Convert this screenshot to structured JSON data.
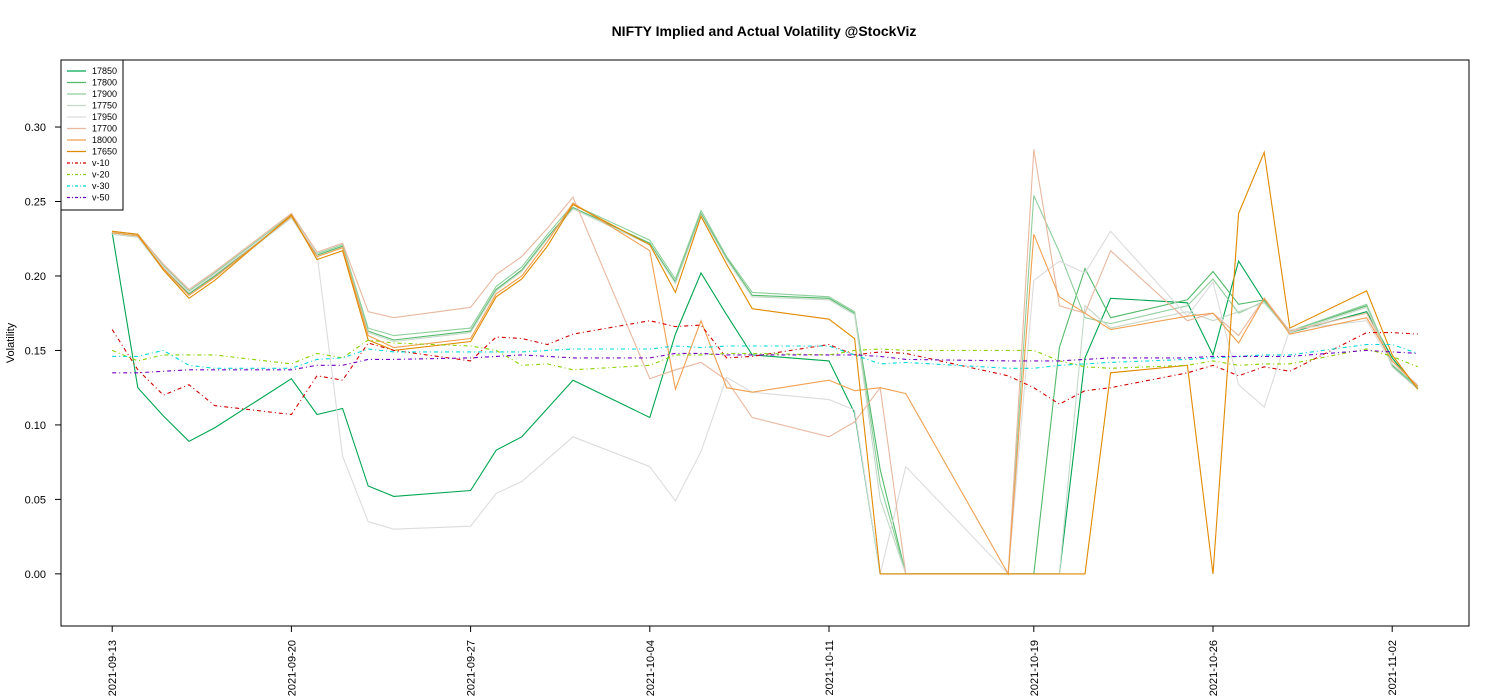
{
  "chart_data": {
    "type": "line",
    "title": "NIFTY Implied and Actual Volatility @StockViz",
    "xlabel": "",
    "ylabel": "Volatility",
    "ylim": [
      -0.035,
      0.345
    ],
    "xlim": [
      "2021-09-11",
      "2021-11-05"
    ],
    "yticks": [
      "0.00",
      "0.05",
      "0.10",
      "0.15",
      "0.20",
      "0.25",
      "0.30"
    ],
    "xticks": [
      "2021-09-13",
      "2021-09-20",
      "2021-09-27",
      "2021-10-04",
      "2021-10-11",
      "2021-10-19",
      "2021-10-26",
      "2021-11-02"
    ],
    "grid": false,
    "legend_position": "top-left",
    "dates": [
      "2021-09-13",
      "2021-09-14",
      "2021-09-15",
      "2021-09-16",
      "2021-09-17",
      "2021-09-20",
      "2021-09-21",
      "2021-09-22",
      "2021-09-23",
      "2021-09-24",
      "2021-09-27",
      "2021-09-28",
      "2021-09-29",
      "2021-09-30",
      "2021-10-01",
      "2021-10-04",
      "2021-10-05",
      "2021-10-06",
      "2021-10-07",
      "2021-10-08",
      "2021-10-11",
      "2021-10-12",
      "2021-10-13",
      "2021-10-14",
      "2021-10-18",
      "2021-10-19",
      "2021-10-20",
      "2021-10-21",
      "2021-10-22",
      "2021-10-25",
      "2021-10-26",
      "2021-10-27",
      "2021-10-28",
      "2021-10-29",
      "2021-11-01",
      "2021-11-02",
      "2021-11-03"
    ],
    "series": [
      {
        "name": "17850",
        "color": "#00a650",
        "dash": "",
        "values": [
          0.229,
          0.125,
          0.106,
          0.089,
          0.098,
          0.131,
          0.107,
          0.111,
          0.059,
          0.052,
          0.056,
          0.083,
          0.092,
          0.111,
          0.13,
          0.105,
          0.161,
          0.202,
          0.174,
          0.147,
          0.143,
          0.108,
          0.0,
          0.0,
          0.0,
          0.0,
          0.0,
          0.145,
          0.185,
          0.182,
          0.147,
          0.21,
          0.183,
          0.162,
          0.176,
          0.145,
          0.124
        ]
      },
      {
        "name": "17800",
        "color": "#52b96a",
        "dash": "",
        "values": [
          0.229,
          0.227,
          0.205,
          0.188,
          0.2,
          0.24,
          0.214,
          0.22,
          0.163,
          0.157,
          0.163,
          0.191,
          0.204,
          0.226,
          0.246,
          0.222,
          0.196,
          0.242,
          0.212,
          0.187,
          0.185,
          0.175,
          0.07,
          0.0,
          0.0,
          0.0,
          0.152,
          0.205,
          0.172,
          0.184,
          0.203,
          0.181,
          0.184,
          0.163,
          0.18,
          0.14,
          0.124
        ]
      },
      {
        "name": "17900",
        "color": "#8fcf9c",
        "dash": "",
        "values": [
          0.23,
          0.228,
          0.207,
          0.19,
          0.202,
          0.241,
          0.215,
          0.221,
          0.165,
          0.16,
          0.165,
          0.193,
          0.206,
          0.228,
          0.248,
          0.224,
          0.198,
          0.244,
          0.213,
          0.189,
          0.186,
          0.176,
          0.06,
          0.0,
          0.0,
          0.254,
          0.216,
          0.172,
          0.168,
          0.18,
          0.198,
          0.175,
          0.183,
          0.163,
          0.181,
          0.141,
          0.125
        ]
      },
      {
        "name": "17750",
        "color": "#c6d9c9",
        "dash": "",
        "values": [
          0.228,
          0.226,
          0.204,
          0.187,
          0.199,
          0.239,
          0.213,
          0.219,
          0.162,
          0.156,
          0.162,
          0.19,
          0.203,
          0.225,
          0.245,
          0.221,
          0.195,
          0.241,
          0.211,
          0.186,
          0.184,
          0.174,
          0.05,
          0.0,
          0.0,
          0.0,
          0.0,
          0.18,
          0.165,
          0.176,
          0.17,
          0.176,
          0.182,
          0.162,
          0.179,
          0.139,
          0.124
        ]
      },
      {
        "name": "17950",
        "color": "#dcdcdc",
        "dash": "",
        "values": [
          0.229,
          0.227,
          0.206,
          0.189,
          0.201,
          0.24,
          0.215,
          0.079,
          0.035,
          0.03,
          0.032,
          0.054,
          0.062,
          0.077,
          0.092,
          0.072,
          0.049,
          0.082,
          0.132,
          0.122,
          0.117,
          0.11,
          0.0,
          0.072,
          0.0,
          0.197,
          0.21,
          0.202,
          0.23,
          0.173,
          0.196,
          0.127,
          0.112,
          0.164,
          0.17,
          0.141,
          0.127
        ]
      },
      {
        "name": "17700",
        "color": "#e8b8a0",
        "dash": "",
        "values": [
          0.23,
          0.228,
          0.208,
          0.191,
          0.203,
          0.242,
          0.216,
          0.222,
          0.176,
          0.172,
          0.179,
          0.201,
          0.213,
          0.232,
          0.253,
          0.131,
          0.137,
          0.142,
          0.13,
          0.105,
          0.092,
          0.102,
          0.125,
          0.0,
          0.0,
          0.285,
          0.18,
          0.175,
          0.217,
          0.17,
          0.175,
          0.16,
          0.185,
          0.163,
          0.175,
          0.143,
          0.126
        ]
      },
      {
        "name": "18000",
        "color": "#f0a050",
        "dash": "",
        "values": [
          0.229,
          0.227,
          0.205,
          0.187,
          0.199,
          0.24,
          0.213,
          0.219,
          0.16,
          0.152,
          0.158,
          0.188,
          0.2,
          0.223,
          0.249,
          0.217,
          0.124,
          0.17,
          0.125,
          0.122,
          0.13,
          0.123,
          0.125,
          0.121,
          0.0,
          0.228,
          0.186,
          0.175,
          0.164,
          0.173,
          0.175,
          0.155,
          0.185,
          0.161,
          0.172,
          0.143,
          0.126
        ]
      },
      {
        "name": "17650",
        "color": "#e08a00",
        "dash": "",
        "values": [
          0.23,
          0.228,
          0.204,
          0.185,
          0.197,
          0.241,
          0.211,
          0.217,
          0.157,
          0.15,
          0.156,
          0.186,
          0.198,
          0.22,
          0.248,
          0.221,
          0.189,
          0.24,
          0.208,
          0.178,
          0.171,
          0.158,
          0.0,
          0.0,
          0.0,
          0.0,
          0.0,
          0.0,
          0.135,
          0.14,
          0.0,
          0.242,
          0.283,
          0.165,
          0.19,
          0.147,
          0.124
        ]
      },
      {
        "name": "v-10",
        "color": "#d00000",
        "dash": "4,3,1,3",
        "values": [
          0.164,
          0.137,
          0.12,
          0.127,
          0.113,
          0.107,
          0.133,
          0.13,
          0.155,
          0.15,
          0.143,
          0.159,
          0.158,
          0.154,
          0.161,
          0.17,
          0.166,
          0.167,
          0.145,
          0.146,
          0.154,
          0.147,
          0.149,
          0.148,
          0.133,
          0.125,
          0.114,
          0.123,
          0.125,
          0.135,
          0.14,
          0.133,
          0.139,
          0.136,
          0.162,
          0.162,
          0.161
        ]
      },
      {
        "name": "v-20",
        "color": "#8ad000",
        "dash": "4,3,1,3",
        "values": [
          0.15,
          0.143,
          0.147,
          0.147,
          0.147,
          0.141,
          0.148,
          0.145,
          0.157,
          0.155,
          0.153,
          0.15,
          0.14,
          0.141,
          0.137,
          0.14,
          0.147,
          0.147,
          0.148,
          0.148,
          0.147,
          0.15,
          0.151,
          0.15,
          0.15,
          0.15,
          0.143,
          0.139,
          0.138,
          0.14,
          0.143,
          0.14,
          0.141,
          0.141,
          0.151,
          0.146,
          0.139
        ]
      },
      {
        "name": "v-30",
        "color": "#00d8d8",
        "dash": "4,3,1,3",
        "values": [
          0.146,
          0.146,
          0.15,
          0.14,
          0.138,
          0.138,
          0.144,
          0.145,
          0.151,
          0.149,
          0.149,
          0.149,
          0.149,
          0.15,
          0.151,
          0.151,
          0.153,
          0.152,
          0.153,
          0.153,
          0.153,
          0.147,
          0.141,
          0.142,
          0.138,
          0.138,
          0.14,
          0.141,
          0.142,
          0.144,
          0.145,
          0.146,
          0.147,
          0.147,
          0.154,
          0.154,
          0.148
        ]
      },
      {
        "name": "v-50",
        "color": "#7000c0",
        "dash": "4,3,1,3",
        "values": [
          0.135,
          0.135,
          0.136,
          0.137,
          0.137,
          0.137,
          0.14,
          0.14,
          0.144,
          0.144,
          0.145,
          0.146,
          0.147,
          0.146,
          0.145,
          0.145,
          0.148,
          0.148,
          0.147,
          0.147,
          0.147,
          0.147,
          0.146,
          0.144,
          0.143,
          0.143,
          0.143,
          0.144,
          0.145,
          0.145,
          0.146,
          0.146,
          0.146,
          0.146,
          0.15,
          0.149,
          0.148
        ]
      }
    ]
  }
}
